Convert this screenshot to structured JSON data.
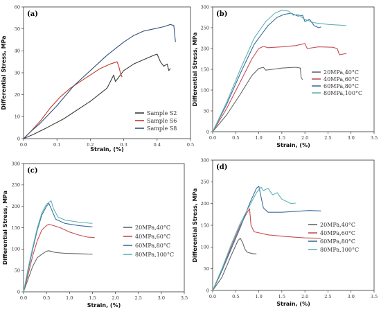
{
  "chart_data": [
    {
      "type": "line",
      "panel_label": "(a)",
      "xlabel": "Strain, (%)",
      "ylabel": "Differential Stress, MPa",
      "xlim": [
        0,
        0.5
      ],
      "ylim": [
        0,
        60
      ],
      "xticks": [
        0,
        0.1,
        0.2,
        0.3,
        0.4,
        0.5
      ],
      "xtick_labels": [
        "0.0",
        "0.1",
        "0.2",
        "0.3",
        "0.4",
        "0.5"
      ],
      "yticks": [
        0,
        10,
        20,
        30,
        40,
        50,
        60
      ],
      "ytick_labels": [
        "0",
        "10",
        "20",
        "30",
        "40",
        "50",
        "60"
      ],
      "legend_position": "bottom-right",
      "series": [
        {
          "name": "Sample S2",
          "color": "#3a3a3a",
          "points": [
            [
              0,
              0
            ],
            [
              0.03,
              2
            ],
            [
              0.07,
              5
            ],
            [
              0.12,
              9
            ],
            [
              0.15,
              12
            ],
            [
              0.2,
              17
            ],
            [
              0.25,
              23
            ],
            [
              0.27,
              29
            ],
            [
              0.275,
              26
            ],
            [
              0.3,
              31
            ],
            [
              0.33,
              34
            ],
            [
              0.36,
              36
            ],
            [
              0.39,
              38
            ],
            [
              0.4,
              38.5
            ],
            [
              0.41,
              35
            ],
            [
              0.42,
              33
            ],
            [
              0.43,
              34
            ],
            [
              0.435,
              31
            ],
            [
              0.44,
              32
            ]
          ]
        },
        {
          "name": "Sample S6",
          "color": "#c0392b",
          "points": [
            [
              0,
              0
            ],
            [
              0.02,
              3
            ],
            [
              0.05,
              8
            ],
            [
              0.08,
              14
            ],
            [
              0.11,
              19
            ],
            [
              0.14,
              23
            ],
            [
              0.17,
              26
            ],
            [
              0.2,
              29
            ],
            [
              0.23,
              32
            ],
            [
              0.26,
              34
            ],
            [
              0.28,
              35
            ],
            [
              0.285,
              33
            ],
            [
              0.29,
              30
            ],
            [
              0.295,
              28
            ]
          ]
        },
        {
          "name": "Sample S8",
          "color": "#33507a",
          "points": [
            [
              0,
              0
            ],
            [
              0.02,
              3
            ],
            [
              0.05,
              7
            ],
            [
              0.1,
              15
            ],
            [
              0.15,
              24
            ],
            [
              0.2,
              31
            ],
            [
              0.25,
              38
            ],
            [
              0.3,
              44
            ],
            [
              0.33,
              47
            ],
            [
              0.36,
              49
            ],
            [
              0.39,
              50
            ],
            [
              0.42,
              51
            ],
            [
              0.44,
              52
            ],
            [
              0.45,
              51.5
            ],
            [
              0.455,
              44
            ]
          ]
        }
      ]
    },
    {
      "type": "line",
      "panel_label": "(b)",
      "xlabel": "Strain, (%)",
      "ylabel": "Differential Stress, MPa",
      "xlim": [
        0,
        3.5
      ],
      "ylim": [
        0,
        300
      ],
      "xticks": [
        0,
        0.5,
        1,
        1.5,
        2,
        2.5,
        3,
        3.5
      ],
      "xtick_labels": [
        "0.0",
        "0.5",
        "1.0",
        "1.5",
        "2.0",
        "2.5",
        "3.0",
        "3.5"
      ],
      "yticks": [
        0,
        50,
        100,
        150,
        200,
        250,
        300
      ],
      "ytick_labels": [
        "0",
        "50",
        "100",
        "150",
        "200",
        "250",
        "300"
      ],
      "legend_position": "right",
      "series": [
        {
          "name": "20MPa,40°C",
          "color": "#666666",
          "points": [
            [
              0,
              0
            ],
            [
              0.3,
              40
            ],
            [
              0.6,
              90
            ],
            [
              0.85,
              135
            ],
            [
              1.0,
              152
            ],
            [
              1.1,
              155
            ],
            [
              1.15,
              148
            ],
            [
              1.3,
              150
            ],
            [
              1.5,
              153
            ],
            [
              1.8,
              155
            ],
            [
              1.9,
              153
            ],
            [
              1.92,
              130
            ],
            [
              1.95,
              125
            ]
          ]
        },
        {
          "name": "40MPa,60°C",
          "color": "#c44e52",
          "points": [
            [
              0,
              0
            ],
            [
              0.3,
              55
            ],
            [
              0.6,
              120
            ],
            [
              0.85,
              175
            ],
            [
              1.0,
              200
            ],
            [
              1.1,
              205
            ],
            [
              1.2,
              202
            ],
            [
              1.5,
              204
            ],
            [
              1.8,
              207
            ],
            [
              2.0,
              212
            ],
            [
              2.05,
              200
            ],
            [
              2.3,
              204
            ],
            [
              2.6,
              203
            ],
            [
              2.7,
              200
            ],
            [
              2.75,
              185
            ],
            [
              2.9,
              188
            ]
          ]
        },
        {
          "name": "60MPa,80°C",
          "color": "#3a6e9e",
          "points": [
            [
              0,
              0
            ],
            [
              0.3,
              65
            ],
            [
              0.6,
              140
            ],
            [
              0.9,
              210
            ],
            [
              1.2,
              255
            ],
            [
              1.4,
              275
            ],
            [
              1.55,
              282
            ],
            [
              1.7,
              285
            ],
            [
              1.85,
              278
            ],
            [
              1.95,
              280
            ],
            [
              2.0,
              265
            ],
            [
              2.1,
              270
            ],
            [
              2.2,
              255
            ],
            [
              2.3,
              250
            ],
            [
              2.35,
              252
            ]
          ]
        },
        {
          "name": "80MPa,100°C",
          "color": "#5fb3b3",
          "points": [
            [
              0,
              0
            ],
            [
              0.3,
              70
            ],
            [
              0.6,
              150
            ],
            [
              0.9,
              225
            ],
            [
              1.15,
              265
            ],
            [
              1.35,
              285
            ],
            [
              1.5,
              292
            ],
            [
              1.65,
              290
            ],
            [
              1.75,
              280
            ],
            [
              1.85,
              282
            ],
            [
              2.0,
              270
            ],
            [
              2.2,
              262
            ],
            [
              2.5,
              258
            ],
            [
              2.8,
              256
            ],
            [
              2.9,
              255
            ]
          ]
        }
      ]
    },
    {
      "type": "line",
      "panel_label": "(c)",
      "xlabel": "Strain, (%)",
      "ylabel": "Differential Stress, MPa",
      "xlim": [
        0,
        3.5
      ],
      "ylim": [
        0,
        300
      ],
      "xticks": [
        0,
        0.5,
        1,
        1.5,
        2,
        2.5,
        3,
        3.5
      ],
      "xtick_labels": [
        "0.0",
        "0.5",
        "1.0",
        "1.5",
        "2.0",
        "2.5",
        "3.0",
        "3.5"
      ],
      "yticks": [
        0,
        50,
        100,
        150,
        200,
        250,
        300
      ],
      "ytick_labels": [
        "0",
        "50",
        "100",
        "150",
        "200",
        "250",
        "300"
      ],
      "legend_position": "right",
      "series": [
        {
          "name": "20MPa,40°C",
          "color": "#666666",
          "points": [
            [
              0,
              0
            ],
            [
              0.1,
              30
            ],
            [
              0.2,
              60
            ],
            [
              0.3,
              80
            ],
            [
              0.4,
              88
            ],
            [
              0.5,
              95
            ],
            [
              0.55,
              96
            ],
            [
              0.7,
              92
            ],
            [
              0.9,
              90
            ],
            [
              1.2,
              89
            ],
            [
              1.5,
              88
            ]
          ]
        },
        {
          "name": "40MPa,60°C",
          "color": "#c44e52",
          "points": [
            [
              0,
              0
            ],
            [
              0.1,
              40
            ],
            [
              0.2,
              85
            ],
            [
              0.3,
              120
            ],
            [
              0.4,
              145
            ],
            [
              0.5,
              155
            ],
            [
              0.55,
              158
            ],
            [
              0.65,
              155
            ],
            [
              0.8,
              150
            ],
            [
              1.0,
              140
            ],
            [
              1.2,
              133
            ],
            [
              1.4,
              128
            ],
            [
              1.55,
              127
            ]
          ]
        },
        {
          "name": "60MPa,80°C",
          "color": "#3a6e9e",
          "points": [
            [
              0,
              0
            ],
            [
              0.1,
              50
            ],
            [
              0.2,
              100
            ],
            [
              0.3,
              145
            ],
            [
              0.4,
              180
            ],
            [
              0.5,
              200
            ],
            [
              0.55,
              207
            ],
            [
              0.6,
              195
            ],
            [
              0.7,
              170
            ],
            [
              0.9,
              160
            ],
            [
              1.2,
              155
            ],
            [
              1.5,
              152
            ]
          ]
        },
        {
          "name": "80MPa,100°C",
          "color": "#5fb3b3",
          "points": [
            [
              0,
              0
            ],
            [
              0.1,
              55
            ],
            [
              0.2,
              105
            ],
            [
              0.3,
              150
            ],
            [
              0.4,
              185
            ],
            [
              0.5,
              205
            ],
            [
              0.6,
              213
            ],
            [
              0.65,
              195
            ],
            [
              0.75,
              175
            ],
            [
              0.9,
              168
            ],
            [
              1.2,
              163
            ],
            [
              1.5,
              160
            ]
          ]
        }
      ]
    },
    {
      "type": "line",
      "panel_label": "(d)",
      "xlabel": "Strain, (%)",
      "ylabel": "Differential Stress, MPa",
      "xlim": [
        0,
        3.5
      ],
      "ylim": [
        0,
        300
      ],
      "xticks": [
        0,
        0.5,
        1,
        1.5,
        2,
        2.5,
        3,
        3.5
      ],
      "xtick_labels": [
        "0.0",
        "0.5",
        "1.0",
        "1.5",
        "2.0",
        "2.5",
        "3.0",
        "3.5"
      ],
      "yticks": [
        0,
        50,
        100,
        150,
        200,
        250,
        300
      ],
      "ytick_labels": [
        "0",
        "50",
        "100",
        "150",
        "200",
        "250",
        "300"
      ],
      "legend_position": "right",
      "series": [
        {
          "name": "20MPa,40°C",
          "color": "#666666",
          "points": [
            [
              0,
              0
            ],
            [
              0.2,
              30
            ],
            [
              0.4,
              80
            ],
            [
              0.55,
              115
            ],
            [
              0.6,
              120
            ],
            [
              0.65,
              110
            ],
            [
              0.7,
              95
            ],
            [
              0.75,
              88
            ],
            [
              0.85,
              85
            ],
            [
              0.95,
              84
            ]
          ]
        },
        {
          "name": "40MPa,60°C",
          "color": "#c44e52",
          "points": [
            [
              0,
              0
            ],
            [
              0.2,
              45
            ],
            [
              0.4,
              100
            ],
            [
              0.6,
              150
            ],
            [
              0.75,
              180
            ],
            [
              0.8,
              188
            ],
            [
              0.83,
              150
            ],
            [
              0.9,
              135
            ],
            [
              1.2,
              128
            ],
            [
              1.6,
              124
            ],
            [
              2.0,
              121
            ],
            [
              2.35,
              120
            ]
          ]
        },
        {
          "name": "60MPa,80°C",
          "color": "#3a6e9e",
          "points": [
            [
              0,
              0
            ],
            [
              0.2,
              45
            ],
            [
              0.4,
              95
            ],
            [
              0.6,
              145
            ],
            [
              0.8,
              200
            ],
            [
              0.95,
              235
            ],
            [
              1.0,
              240
            ],
            [
              1.05,
              215
            ],
            [
              1.1,
              190
            ],
            [
              1.2,
              180
            ],
            [
              1.5,
              180
            ],
            [
              1.8,
              182
            ],
            [
              2.1,
              184
            ],
            [
              2.35,
              183
            ]
          ]
        },
        {
          "name": "80MPa,100°C",
          "color": "#5fb3b3",
          "points": [
            [
              0,
              0
            ],
            [
              0.2,
              50
            ],
            [
              0.4,
              105
            ],
            [
              0.6,
              155
            ],
            [
              0.8,
              195
            ],
            [
              0.95,
              225
            ],
            [
              1.05,
              238
            ],
            [
              1.1,
              230
            ],
            [
              1.2,
              235
            ],
            [
              1.3,
              220
            ],
            [
              1.4,
              225
            ],
            [
              1.5,
              210
            ],
            [
              1.6,
              205
            ],
            [
              1.7,
              200
            ],
            [
              1.8,
              201
            ]
          ]
        }
      ]
    }
  ]
}
